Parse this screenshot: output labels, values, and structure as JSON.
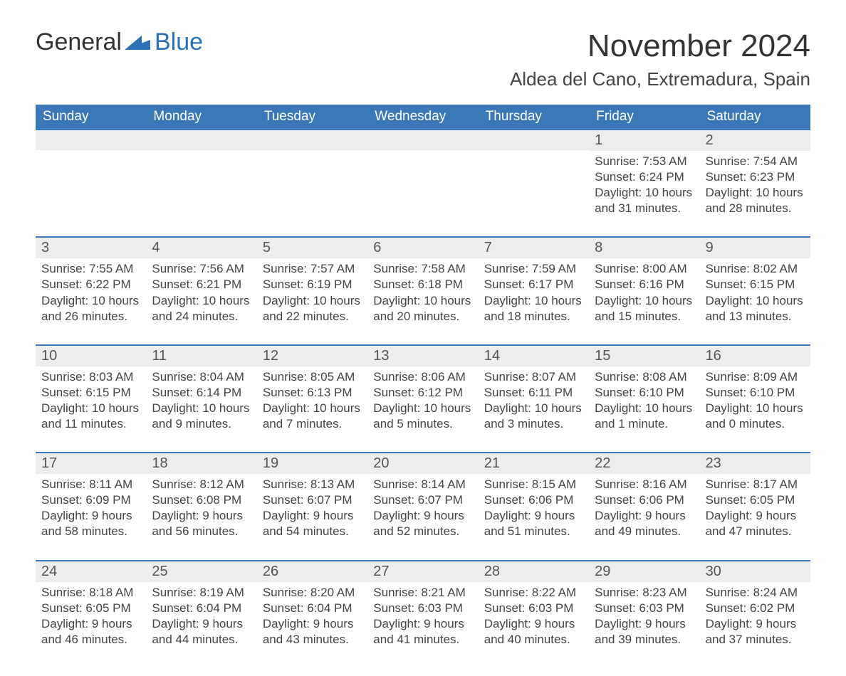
{
  "logo": {
    "general": "General",
    "blue": "Blue"
  },
  "title": "November 2024",
  "location": "Aldea del Cano, Extremadura, Spain",
  "colors": {
    "header_bg": "#3b78b8",
    "header_text": "#ffffff",
    "row_accent": "#3b78b8",
    "daynum_bg": "#ededed",
    "body_bg": "#ffffff",
    "text": "#3b3b3b",
    "logo_blue": "#2a71b8"
  },
  "days_of_week": [
    "Sunday",
    "Monday",
    "Tuesday",
    "Wednesday",
    "Thursday",
    "Friday",
    "Saturday"
  ],
  "weeks": [
    [
      null,
      null,
      null,
      null,
      null,
      {
        "n": "1",
        "sunrise": "Sunrise: 7:53 AM",
        "sunset": "Sunset: 6:24 PM",
        "dl1": "Daylight: 10 hours",
        "dl2": "and 31 minutes."
      },
      {
        "n": "2",
        "sunrise": "Sunrise: 7:54 AM",
        "sunset": "Sunset: 6:23 PM",
        "dl1": "Daylight: 10 hours",
        "dl2": "and 28 minutes."
      }
    ],
    [
      {
        "n": "3",
        "sunrise": "Sunrise: 7:55 AM",
        "sunset": "Sunset: 6:22 PM",
        "dl1": "Daylight: 10 hours",
        "dl2": "and 26 minutes."
      },
      {
        "n": "4",
        "sunrise": "Sunrise: 7:56 AM",
        "sunset": "Sunset: 6:21 PM",
        "dl1": "Daylight: 10 hours",
        "dl2": "and 24 minutes."
      },
      {
        "n": "5",
        "sunrise": "Sunrise: 7:57 AM",
        "sunset": "Sunset: 6:19 PM",
        "dl1": "Daylight: 10 hours",
        "dl2": "and 22 minutes."
      },
      {
        "n": "6",
        "sunrise": "Sunrise: 7:58 AM",
        "sunset": "Sunset: 6:18 PM",
        "dl1": "Daylight: 10 hours",
        "dl2": "and 20 minutes."
      },
      {
        "n": "7",
        "sunrise": "Sunrise: 7:59 AM",
        "sunset": "Sunset: 6:17 PM",
        "dl1": "Daylight: 10 hours",
        "dl2": "and 18 minutes."
      },
      {
        "n": "8",
        "sunrise": "Sunrise: 8:00 AM",
        "sunset": "Sunset: 6:16 PM",
        "dl1": "Daylight: 10 hours",
        "dl2": "and 15 minutes."
      },
      {
        "n": "9",
        "sunrise": "Sunrise: 8:02 AM",
        "sunset": "Sunset: 6:15 PM",
        "dl1": "Daylight: 10 hours",
        "dl2": "and 13 minutes."
      }
    ],
    [
      {
        "n": "10",
        "sunrise": "Sunrise: 8:03 AM",
        "sunset": "Sunset: 6:15 PM",
        "dl1": "Daylight: 10 hours",
        "dl2": "and 11 minutes."
      },
      {
        "n": "11",
        "sunrise": "Sunrise: 8:04 AM",
        "sunset": "Sunset: 6:14 PM",
        "dl1": "Daylight: 10 hours",
        "dl2": "and 9 minutes."
      },
      {
        "n": "12",
        "sunrise": "Sunrise: 8:05 AM",
        "sunset": "Sunset: 6:13 PM",
        "dl1": "Daylight: 10 hours",
        "dl2": "and 7 minutes."
      },
      {
        "n": "13",
        "sunrise": "Sunrise: 8:06 AM",
        "sunset": "Sunset: 6:12 PM",
        "dl1": "Daylight: 10 hours",
        "dl2": "and 5 minutes."
      },
      {
        "n": "14",
        "sunrise": "Sunrise: 8:07 AM",
        "sunset": "Sunset: 6:11 PM",
        "dl1": "Daylight: 10 hours",
        "dl2": "and 3 minutes."
      },
      {
        "n": "15",
        "sunrise": "Sunrise: 8:08 AM",
        "sunset": "Sunset: 6:10 PM",
        "dl1": "Daylight: 10 hours",
        "dl2": "and 1 minute."
      },
      {
        "n": "16",
        "sunrise": "Sunrise: 8:09 AM",
        "sunset": "Sunset: 6:10 PM",
        "dl1": "Daylight: 10 hours",
        "dl2": "and 0 minutes."
      }
    ],
    [
      {
        "n": "17",
        "sunrise": "Sunrise: 8:11 AM",
        "sunset": "Sunset: 6:09 PM",
        "dl1": "Daylight: 9 hours",
        "dl2": "and 58 minutes."
      },
      {
        "n": "18",
        "sunrise": "Sunrise: 8:12 AM",
        "sunset": "Sunset: 6:08 PM",
        "dl1": "Daylight: 9 hours",
        "dl2": "and 56 minutes."
      },
      {
        "n": "19",
        "sunrise": "Sunrise: 8:13 AM",
        "sunset": "Sunset: 6:07 PM",
        "dl1": "Daylight: 9 hours",
        "dl2": "and 54 minutes."
      },
      {
        "n": "20",
        "sunrise": "Sunrise: 8:14 AM",
        "sunset": "Sunset: 6:07 PM",
        "dl1": "Daylight: 9 hours",
        "dl2": "and 52 minutes."
      },
      {
        "n": "21",
        "sunrise": "Sunrise: 8:15 AM",
        "sunset": "Sunset: 6:06 PM",
        "dl1": "Daylight: 9 hours",
        "dl2": "and 51 minutes."
      },
      {
        "n": "22",
        "sunrise": "Sunrise: 8:16 AM",
        "sunset": "Sunset: 6:06 PM",
        "dl1": "Daylight: 9 hours",
        "dl2": "and 49 minutes."
      },
      {
        "n": "23",
        "sunrise": "Sunrise: 8:17 AM",
        "sunset": "Sunset: 6:05 PM",
        "dl1": "Daylight: 9 hours",
        "dl2": "and 47 minutes."
      }
    ],
    [
      {
        "n": "24",
        "sunrise": "Sunrise: 8:18 AM",
        "sunset": "Sunset: 6:05 PM",
        "dl1": "Daylight: 9 hours",
        "dl2": "and 46 minutes."
      },
      {
        "n": "25",
        "sunrise": "Sunrise: 8:19 AM",
        "sunset": "Sunset: 6:04 PM",
        "dl1": "Daylight: 9 hours",
        "dl2": "and 44 minutes."
      },
      {
        "n": "26",
        "sunrise": "Sunrise: 8:20 AM",
        "sunset": "Sunset: 6:04 PM",
        "dl1": "Daylight: 9 hours",
        "dl2": "and 43 minutes."
      },
      {
        "n": "27",
        "sunrise": "Sunrise: 8:21 AM",
        "sunset": "Sunset: 6:03 PM",
        "dl1": "Daylight: 9 hours",
        "dl2": "and 41 minutes."
      },
      {
        "n": "28",
        "sunrise": "Sunrise: 8:22 AM",
        "sunset": "Sunset: 6:03 PM",
        "dl1": "Daylight: 9 hours",
        "dl2": "and 40 minutes."
      },
      {
        "n": "29",
        "sunrise": "Sunrise: 8:23 AM",
        "sunset": "Sunset: 6:03 PM",
        "dl1": "Daylight: 9 hours",
        "dl2": "and 39 minutes."
      },
      {
        "n": "30",
        "sunrise": "Sunrise: 8:24 AM",
        "sunset": "Sunset: 6:02 PM",
        "dl1": "Daylight: 9 hours",
        "dl2": "and 37 minutes."
      }
    ]
  ]
}
